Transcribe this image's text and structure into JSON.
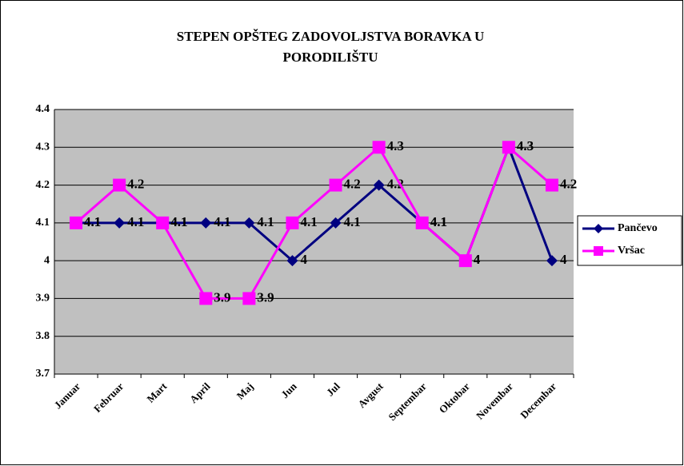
{
  "chart_data": {
    "type": "line",
    "title": [
      "STEPEN OPŠTEG ZADOVOLJSTVA BORAVKA U",
      "PORODILIŠTU"
    ],
    "categories": [
      "Januar",
      "Februar",
      "Mart",
      "April",
      "Maj",
      "Jun",
      "Jul",
      "Avgust",
      "Septembar",
      "Oktobar",
      "Novembar",
      "Decembar"
    ],
    "series": [
      {
        "name": "Pančevo",
        "color": "#000080",
        "marker": "diamond",
        "values": [
          4.1,
          4.1,
          4.1,
          4.1,
          4.1,
          4,
          4.1,
          4.2,
          4.1,
          4,
          4.3,
          4
        ]
      },
      {
        "name": "Vršac",
        "color": "#ff00ff",
        "marker": "square",
        "values": [
          4.1,
          4.2,
          4.1,
          3.9,
          3.9,
          4.1,
          4.2,
          4.3,
          4.1,
          4,
          4.3,
          4.2
        ]
      }
    ],
    "ylim": [
      3.7,
      4.4
    ],
    "yticks": [
      3.7,
      3.8,
      3.9,
      4,
      4.1,
      4.2,
      4.3,
      4.4
    ],
    "grid": true,
    "legend": "right"
  }
}
